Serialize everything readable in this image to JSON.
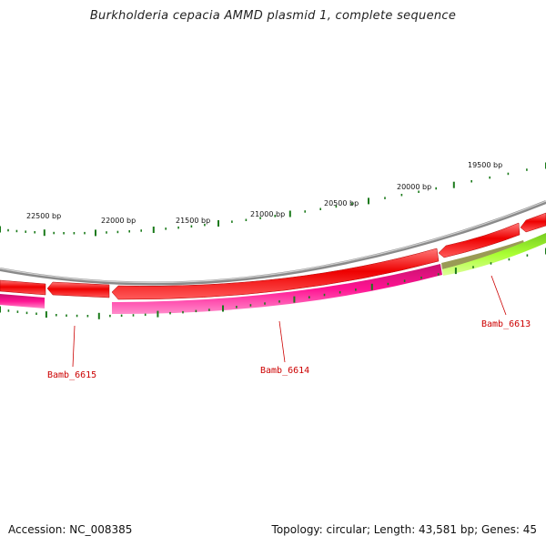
{
  "title": "Burkholderia cepacia AMMD plasmid 1, complete sequence",
  "accession_label": "Accession: NC_008385",
  "summary_label": "Topology: circular; Length: 43,581 bp; Genes: 45",
  "scale_labels": [
    "22500 bp",
    "22000 bp",
    "21500 bp",
    "21000 bp",
    "20500 bp",
    "20000 bp",
    "19500 bp"
  ],
  "gene_labels": [
    "Bamb_6615",
    "Bamb_6614",
    "Bamb_6613"
  ],
  "colors": {
    "backbone": "#8a8a8a",
    "cds": "#ee0000",
    "gene_magenta": "#ff1493",
    "gene_lime": "#aaff33",
    "gene_olive": "#9a9a55",
    "tick": "#1a7a1a",
    "label": "#cc0000"
  }
}
